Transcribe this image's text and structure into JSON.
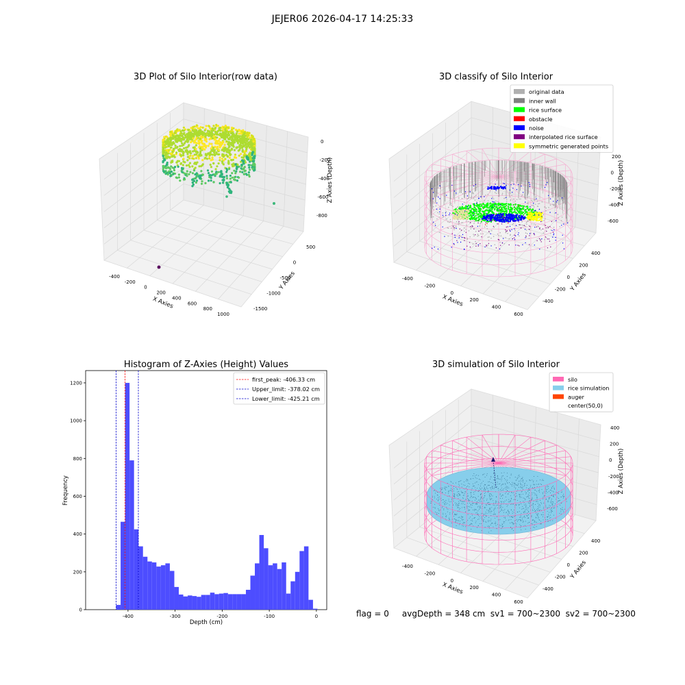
{
  "suptitle": "JEJER06 2026-04-17 14:25:33",
  "status_line": "flag = 0     avgDepth = 348 cm  sv1 = 700~2300  sv2 = 700~2300",
  "colors": {
    "silo": "#ff69b4",
    "rice": "#87ceeb",
    "auger": "#ff4500",
    "original": "#b0b0b0",
    "inner_wall": "#808080",
    "rice_surface": "#00ff00",
    "obstacle": "#ff0000",
    "noise": "#0000ff",
    "interpolated": "#800080",
    "symmetric": "#ffff00",
    "hist_bar": "#4d4dff"
  },
  "chart_data": [
    {
      "type": "scatter",
      "title": "3D Plot of Silo Interior(row data)",
      "xlabel": "X Axies",
      "ylabel": "Y Axies",
      "zlabel": "Z Axies (Depth)",
      "xticks": [
        "-400",
        "-200",
        "0",
        "200",
        "400",
        "600",
        "800",
        "1000"
      ],
      "yticks": [
        "500",
        "0",
        "-500",
        "-1000",
        "-1500"
      ],
      "zticks": [
        "0",
        "-200",
        "-400",
        "-600",
        "-800"
      ]
    },
    {
      "type": "scatter",
      "title": "3D classify of Silo Interior",
      "xlabel": "X Axies",
      "ylabel": "Y Axies",
      "zlabel": "Z Axies (Depth)",
      "xticks": [
        "-400",
        "-200",
        "0",
        "200",
        "400",
        "600"
      ],
      "yticks": [
        "400",
        "200",
        "0",
        "-200",
        "-400"
      ],
      "zticks": [
        "200",
        "0",
        "-200",
        "-400",
        "-600"
      ],
      "legend": [
        {
          "label": "original data",
          "color": "#b0b0b0"
        },
        {
          "label": "inner wall",
          "color": "#808080"
        },
        {
          "label": "rice surface",
          "color": "#00ff00"
        },
        {
          "label": "obstacle",
          "color": "#ff0000"
        },
        {
          "label": "noise",
          "color": "#0000ff"
        },
        {
          "label": "interpolated rice surface",
          "color": "#800080"
        },
        {
          "label": "symmetric generated points",
          "color": "#ffff00"
        }
      ]
    },
    {
      "type": "bar",
      "title": "Histogram of Z-Axies (Height) Values",
      "xlabel": "Depth (cm)",
      "ylabel": "Frequency",
      "xlim": [
        -490,
        22
      ],
      "ylim": [
        0,
        1265
      ],
      "xticks": [
        "-400",
        "-300",
        "-200",
        "-100",
        "0"
      ],
      "yticks": [
        "0",
        "200",
        "400",
        "600",
        "800",
        "1000",
        "1200"
      ],
      "bin_start": -425.2,
      "bin_width": 9.5,
      "values": [
        25,
        465,
        1200,
        790,
        425,
        335,
        280,
        255,
        250,
        228,
        235,
        245,
        205,
        120,
        80,
        70,
        75,
        72,
        68,
        78,
        78,
        90,
        82,
        85,
        88,
        82,
        82,
        82,
        82,
        105,
        180,
        245,
        395,
        325,
        235,
        245,
        215,
        250,
        85,
        150,
        200,
        310,
        335,
        52,
        5
      ],
      "vlines": [
        {
          "label": "first_peak: -406.33 cm",
          "value": -406.33,
          "color": "#ff0000"
        },
        {
          "label": "Upper_limit: -378.02 cm",
          "value": -378.02,
          "color": "#0000cc"
        },
        {
          "label": "Lower_limit: -425.21 cm",
          "value": -425.21,
          "color": "#0000cc"
        }
      ]
    },
    {
      "type": "scatter",
      "title": "3D simulation of Silo Interior",
      "xlabel": "X Axies",
      "ylabel": "Y Axies",
      "zlabel": "Z Axies (Depth)",
      "xticks": [
        "-400",
        "-200",
        "0",
        "200",
        "400",
        "600"
      ],
      "yticks": [
        "400",
        "200",
        "0",
        "-200",
        "-400"
      ],
      "zticks": [
        "400",
        "200",
        "0",
        "-200",
        "-400",
        "-600"
      ],
      "legend": [
        {
          "label": "silo",
          "color": "#ff69b4"
        },
        {
          "label": "rice simulation",
          "color": "#87ceeb"
        },
        {
          "label": "auger",
          "color": "#ff4500"
        },
        {
          "label": "center(50,0)",
          "color": ""
        }
      ]
    }
  ]
}
